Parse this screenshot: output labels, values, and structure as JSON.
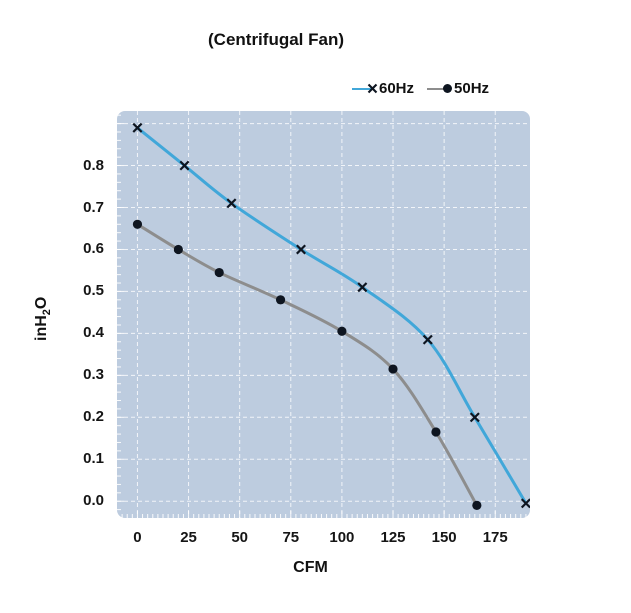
{
  "chart_data": {
    "type": "line",
    "title": "(Centrifugal Fan)",
    "xlabel": "CFM",
    "ylabel": "inH2O",
    "ylabel_parts": {
      "pre": "inH",
      "sub": "2",
      "post": "O"
    },
    "xlim": [
      -10,
      192
    ],
    "ylim": [
      -0.04,
      0.93
    ],
    "xticks": [
      0,
      25,
      50,
      75,
      100,
      125,
      150,
      175
    ],
    "yticks": [
      0.8,
      0.7,
      0.6,
      0.5,
      0.4,
      0.3,
      0.2,
      0.1,
      0.0
    ],
    "grid": {
      "on": true,
      "x_values": [
        0,
        25,
        50,
        75,
        100,
        125,
        150,
        175
      ],
      "y_min": 0.0,
      "y_max": 0.9,
      "y_step": 0.1,
      "minor_x_step": 2.5,
      "minor_y_step": 0.02,
      "dash": "4 3"
    },
    "legend_position": "top-right",
    "series": [
      {
        "name": "60Hz",
        "color": "#41a7d9",
        "marker": "x",
        "points": [
          [
            0,
            0.89
          ],
          [
            23,
            0.8
          ],
          [
            46,
            0.71
          ],
          [
            80,
            0.6
          ],
          [
            110,
            0.51
          ],
          [
            142,
            0.385
          ],
          [
            165,
            0.2
          ],
          [
            190,
            -0.005
          ]
        ]
      },
      {
        "name": "50Hz",
        "color": "#8d8d8d",
        "marker": "dot",
        "points": [
          [
            0,
            0.66
          ],
          [
            20,
            0.6
          ],
          [
            40,
            0.545
          ],
          [
            70,
            0.48
          ],
          [
            100,
            0.405
          ],
          [
            125,
            0.315
          ],
          [
            146,
            0.165
          ],
          [
            166,
            -0.01
          ]
        ]
      }
    ],
    "colors": {
      "plot_bg": "#bdccdf",
      "grid": "#ffffff",
      "marker": "#0e1520",
      "text": "#151515"
    }
  }
}
